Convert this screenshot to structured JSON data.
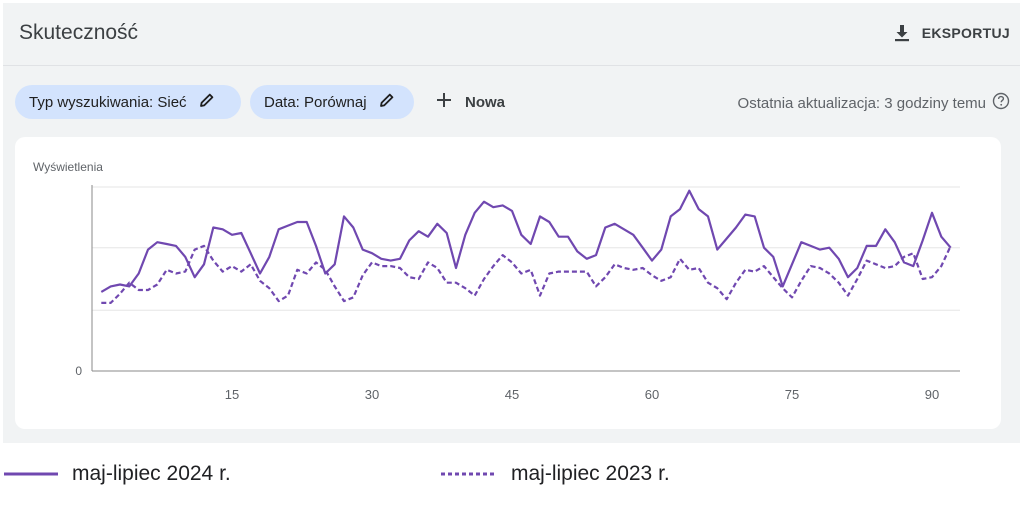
{
  "header": {
    "title": "Skuteczność",
    "export_label": "EKSPORTUJ"
  },
  "filters": {
    "chip1_label": "Typ wyszukiwania: Sieć",
    "chip2_label": "Data: Porównaj",
    "new_label": "Nowa"
  },
  "status": {
    "last_update": "Ostatnia aktualizacja: 3 godziny temu"
  },
  "colors": {
    "series": "#7048b0",
    "accent_chip": "#d3e3fd"
  },
  "chart_data": {
    "type": "line",
    "ylabel": "Wyświetlenia",
    "y_tick_labels": [
      "0"
    ],
    "x_tick_labels": [
      "15",
      "30",
      "45",
      "60",
      "75",
      "90"
    ],
    "x_ticks": [
      15,
      30,
      45,
      60,
      75,
      90
    ],
    "xlim": [
      0,
      93
    ],
    "ylim": [
      0,
      100
    ],
    "gridlines": [
      33,
      67,
      100
    ],
    "legend_position": "bottom",
    "series": [
      {
        "name": "maj-lipiec 2024 r.",
        "style": "solid",
        "x": [
          1,
          2,
          3,
          4,
          5,
          6,
          7,
          8,
          9,
          10,
          11,
          12,
          13,
          14,
          15,
          16,
          17,
          18,
          19,
          20,
          21,
          22,
          23,
          24,
          25,
          26,
          27,
          28,
          29,
          30,
          31,
          32,
          33,
          34,
          35,
          36,
          37,
          38,
          39,
          40,
          41,
          42,
          43,
          44,
          45,
          46,
          47,
          48,
          49,
          50,
          51,
          52,
          53,
          54,
          55,
          56,
          57,
          58,
          59,
          60,
          61,
          62,
          63,
          64,
          65,
          66,
          67,
          68,
          69,
          70,
          71,
          72,
          73,
          74,
          75,
          76,
          77,
          78,
          79,
          80,
          81,
          82,
          83,
          84,
          85,
          86,
          87,
          88,
          89,
          90,
          91,
          92
        ],
        "values": [
          43,
          46,
          47,
          46,
          53,
          66,
          70,
          69,
          68,
          62,
          51,
          58,
          78,
          77,
          74,
          75,
          64,
          53,
          62,
          77,
          79,
          81,
          81,
          68,
          53,
          58,
          84,
          78,
          66,
          64,
          61,
          60,
          61,
          71,
          76,
          73,
          80,
          75,
          56,
          74,
          86,
          92,
          89,
          90,
          87,
          74,
          69,
          84,
          81,
          73,
          73,
          65,
          61,
          63,
          78,
          80,
          77,
          74,
          67,
          60,
          66,
          84,
          88,
          98,
          88,
          84,
          66,
          72,
          78,
          85,
          84,
          67,
          62,
          46,
          58,
          70,
          68,
          66,
          67,
          61,
          51,
          56,
          68,
          68,
          77,
          70,
          59,
          57,
          71,
          86,
          73,
          67
        ]
      },
      {
        "name": "maj-lipiec 2023 r.",
        "style": "dashed",
        "x": [
          1,
          2,
          3,
          4,
          5,
          6,
          7,
          8,
          9,
          10,
          11,
          12,
          13,
          14,
          15,
          16,
          17,
          18,
          19,
          20,
          21,
          22,
          23,
          24,
          25,
          26,
          27,
          28,
          29,
          30,
          31,
          32,
          33,
          34,
          35,
          36,
          37,
          38,
          39,
          40,
          41,
          42,
          43,
          44,
          45,
          46,
          47,
          48,
          49,
          50,
          51,
          52,
          53,
          54,
          55,
          56,
          57,
          58,
          59,
          60,
          61,
          62,
          63,
          64,
          65,
          66,
          67,
          68,
          69,
          70,
          71,
          72,
          73,
          74,
          75,
          76,
          77,
          78,
          79,
          80,
          81,
          82,
          83,
          84,
          85,
          86,
          87,
          88,
          89,
          90,
          91,
          92
        ],
        "values": [
          37,
          37,
          42,
          48,
          44,
          44,
          47,
          55,
          53,
          54,
          66,
          68,
          60,
          54,
          57,
          54,
          58,
          49,
          45,
          38,
          41,
          55,
          53,
          59,
          55,
          46,
          38,
          40,
          52,
          59,
          57,
          57,
          56,
          51,
          50,
          59,
          56,
          48,
          48,
          45,
          41,
          50,
          57,
          63,
          59,
          53,
          55,
          41,
          53,
          54,
          54,
          54,
          54,
          46,
          51,
          58,
          56,
          55,
          56,
          52,
          49,
          51,
          61,
          55,
          56,
          48,
          45,
          39,
          48,
          55,
          54,
          57,
          51,
          45,
          40,
          49,
          57,
          56,
          53,
          48,
          41,
          50,
          60,
          58,
          56,
          57,
          62,
          64,
          50,
          51,
          57,
          68
        ]
      }
    ]
  }
}
